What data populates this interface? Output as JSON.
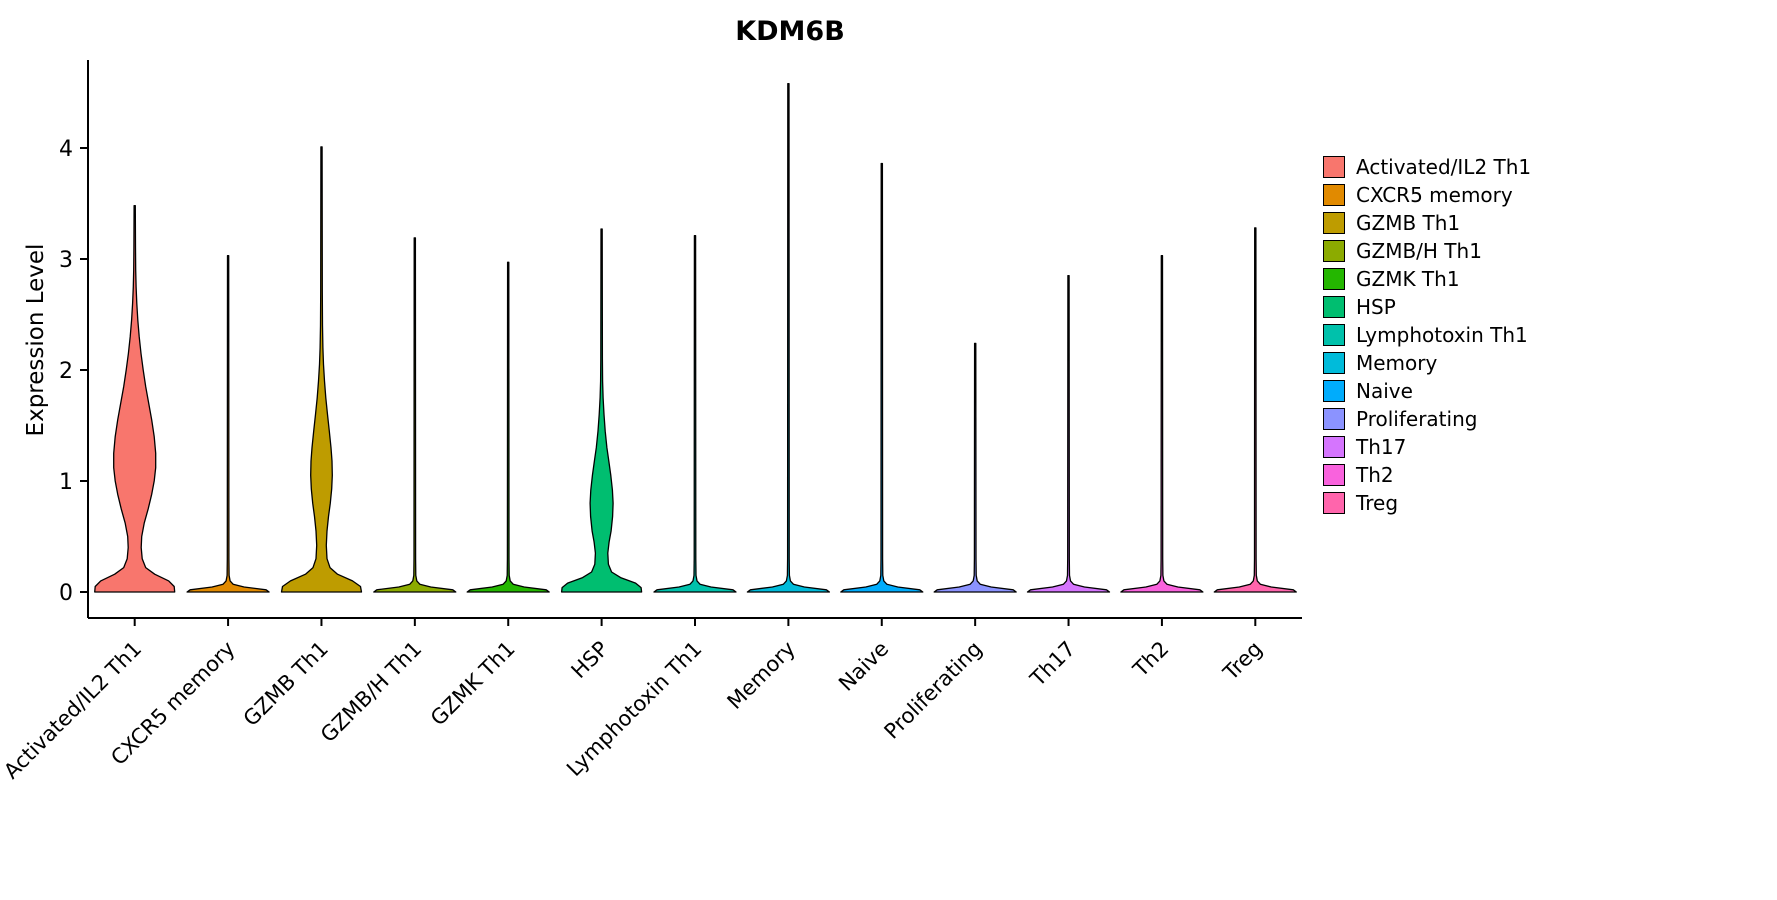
{
  "title": "KDM6B",
  "chart_data": {
    "type": "violin",
    "title": "KDM6B",
    "xlabel": "",
    "ylabel": "Expression Level",
    "ylim": [
      0,
      4.77
    ],
    "yticks": [
      0,
      1,
      2,
      3,
      4
    ],
    "grid": false,
    "legend_position": "right",
    "categories": [
      "Activated/IL2 Th1",
      "CXCR5 memory",
      "GZMB Th1",
      "GZMB/H Th1",
      "GZMK Th1",
      "HSP",
      "Lymphotoxin Th1",
      "Memory",
      "Naive",
      "Proliferating",
      "Th17",
      "Th2",
      "Treg"
    ],
    "series": [
      {
        "name": "Activated/IL2 Th1",
        "color": "#F8766D",
        "max_expression": 3.48,
        "profile": [
          [
            0,
            40
          ],
          [
            0.05,
            39.5
          ],
          [
            0.1,
            34
          ],
          [
            0.16,
            20
          ],
          [
            0.22,
            11
          ],
          [
            0.3,
            7.5
          ],
          [
            0.4,
            6.5
          ],
          [
            0.5,
            7
          ],
          [
            0.62,
            9.5
          ],
          [
            0.75,
            13.5
          ],
          [
            0.88,
            17
          ],
          [
            1.0,
            19.5
          ],
          [
            1.12,
            21
          ],
          [
            1.25,
            21
          ],
          [
            1.4,
            19.5
          ],
          [
            1.55,
            17
          ],
          [
            1.7,
            14
          ],
          [
            1.85,
            11
          ],
          [
            2.0,
            8.5
          ],
          [
            2.15,
            6.3
          ],
          [
            2.3,
            4.5
          ],
          [
            2.45,
            3.1
          ],
          [
            2.6,
            2.1
          ],
          [
            2.75,
            1.4
          ],
          [
            2.9,
            1.0
          ],
          [
            3.1,
            0.8
          ],
          [
            3.48,
            0.6
          ]
        ]
      },
      {
        "name": "CXCR5 memory",
        "color": "#E18A00",
        "max_expression": 3.03,
        "profile": [
          [
            0,
            41
          ],
          [
            0.02,
            38
          ],
          [
            0.045,
            16
          ],
          [
            0.07,
            5
          ],
          [
            0.1,
            2
          ],
          [
            0.15,
            1
          ],
          [
            0.3,
            0.8
          ],
          [
            3.03,
            0.6
          ]
        ]
      },
      {
        "name": "GZMB Th1",
        "color": "#BE9C00",
        "max_expression": 4.01,
        "profile": [
          [
            0,
            40
          ],
          [
            0.05,
            39
          ],
          [
            0.1,
            31
          ],
          [
            0.16,
            16
          ],
          [
            0.22,
            8.5
          ],
          [
            0.3,
            5.5
          ],
          [
            0.42,
            4.8
          ],
          [
            0.55,
            5.5
          ],
          [
            0.68,
            7
          ],
          [
            0.8,
            8.8
          ],
          [
            0.93,
            10.2
          ],
          [
            1.05,
            10.8
          ],
          [
            1.18,
            10.5
          ],
          [
            1.3,
            9.5
          ],
          [
            1.45,
            7.8
          ],
          [
            1.6,
            6
          ],
          [
            1.75,
            4.3
          ],
          [
            1.9,
            3
          ],
          [
            2.05,
            2
          ],
          [
            2.2,
            1.4
          ],
          [
            2.4,
            1.0
          ],
          [
            2.7,
            0.8
          ],
          [
            4.01,
            0.6
          ]
        ]
      },
      {
        "name": "GZMB/H Th1",
        "color": "#8CAB00",
        "max_expression": 3.19,
        "profile": [
          [
            0,
            41
          ],
          [
            0.02,
            38
          ],
          [
            0.045,
            16
          ],
          [
            0.07,
            5
          ],
          [
            0.1,
            2
          ],
          [
            0.15,
            1
          ],
          [
            0.3,
            0.8
          ],
          [
            3.19,
            0.6
          ]
        ]
      },
      {
        "name": "GZMK Th1",
        "color": "#24B700",
        "max_expression": 2.97,
        "profile": [
          [
            0,
            41
          ],
          [
            0.02,
            38
          ],
          [
            0.045,
            16
          ],
          [
            0.07,
            5
          ],
          [
            0.1,
            2
          ],
          [
            0.15,
            1
          ],
          [
            0.3,
            0.8
          ],
          [
            2.97,
            0.6
          ]
        ]
      },
      {
        "name": "HSP",
        "color": "#00BE70",
        "max_expression": 3.27,
        "profile": [
          [
            0,
            40
          ],
          [
            0.04,
            39.5
          ],
          [
            0.08,
            34
          ],
          [
            0.13,
            19
          ],
          [
            0.18,
            10
          ],
          [
            0.25,
            6.8
          ],
          [
            0.35,
            6.2
          ],
          [
            0.45,
            7.5
          ],
          [
            0.55,
            9.5
          ],
          [
            0.68,
            11
          ],
          [
            0.8,
            11.5
          ],
          [
            0.92,
            10.8
          ],
          [
            1.05,
            9.2
          ],
          [
            1.18,
            7.2
          ],
          [
            1.3,
            5.3
          ],
          [
            1.45,
            3.6
          ],
          [
            1.6,
            2.4
          ],
          [
            1.75,
            1.5
          ],
          [
            1.9,
            1.0
          ],
          [
            2.1,
            0.8
          ],
          [
            3.27,
            0.6
          ]
        ]
      },
      {
        "name": "Lymphotoxin Th1",
        "color": "#00C1AB",
        "max_expression": 3.21,
        "profile": [
          [
            0,
            41
          ],
          [
            0.02,
            38
          ],
          [
            0.045,
            16
          ],
          [
            0.07,
            5
          ],
          [
            0.1,
            2
          ],
          [
            0.15,
            1
          ],
          [
            0.3,
            0.8
          ],
          [
            3.21,
            0.6
          ]
        ]
      },
      {
        "name": "Memory",
        "color": "#00BBDA",
        "max_expression": 4.58,
        "profile": [
          [
            0,
            41
          ],
          [
            0.02,
            38
          ],
          [
            0.045,
            16
          ],
          [
            0.07,
            5
          ],
          [
            0.1,
            2
          ],
          [
            0.15,
            1
          ],
          [
            0.3,
            0.8
          ],
          [
            4.58,
            0.6
          ]
        ]
      },
      {
        "name": "Naive",
        "color": "#00ACFC",
        "max_expression": 3.86,
        "profile": [
          [
            0,
            41
          ],
          [
            0.02,
            38
          ],
          [
            0.045,
            16
          ],
          [
            0.07,
            5
          ],
          [
            0.1,
            2
          ],
          [
            0.15,
            1
          ],
          [
            0.3,
            0.8
          ],
          [
            3.86,
            0.6
          ]
        ]
      },
      {
        "name": "Proliferating",
        "color": "#8B93FF",
        "max_expression": 2.24,
        "profile": [
          [
            0,
            41
          ],
          [
            0.02,
            38
          ],
          [
            0.045,
            16
          ],
          [
            0.07,
            5
          ],
          [
            0.1,
            2
          ],
          [
            0.15,
            1
          ],
          [
            0.3,
            0.8
          ],
          [
            2.24,
            0.6
          ]
        ]
      },
      {
        "name": "Th17",
        "color": "#D575FE",
        "max_expression": 2.85,
        "profile": [
          [
            0,
            41
          ],
          [
            0.02,
            38
          ],
          [
            0.045,
            16
          ],
          [
            0.07,
            5
          ],
          [
            0.1,
            2
          ],
          [
            0.15,
            1
          ],
          [
            0.3,
            0.8
          ],
          [
            2.85,
            0.6
          ]
        ]
      },
      {
        "name": "Th2",
        "color": "#F962DD",
        "max_expression": 3.03,
        "profile": [
          [
            0,
            41
          ],
          [
            0.02,
            38
          ],
          [
            0.045,
            16
          ],
          [
            0.07,
            5
          ],
          [
            0.1,
            2
          ],
          [
            0.15,
            1
          ],
          [
            0.3,
            0.8
          ],
          [
            3.03,
            0.6
          ]
        ]
      },
      {
        "name": "Treg",
        "color": "#FF65AC",
        "max_expression": 3.28,
        "profile": [
          [
            0,
            41
          ],
          [
            0.02,
            38
          ],
          [
            0.045,
            16
          ],
          [
            0.07,
            5
          ],
          [
            0.1,
            2
          ],
          [
            0.15,
            1
          ],
          [
            0.3,
            0.8
          ],
          [
            3.28,
            0.6
          ]
        ]
      }
    ]
  }
}
